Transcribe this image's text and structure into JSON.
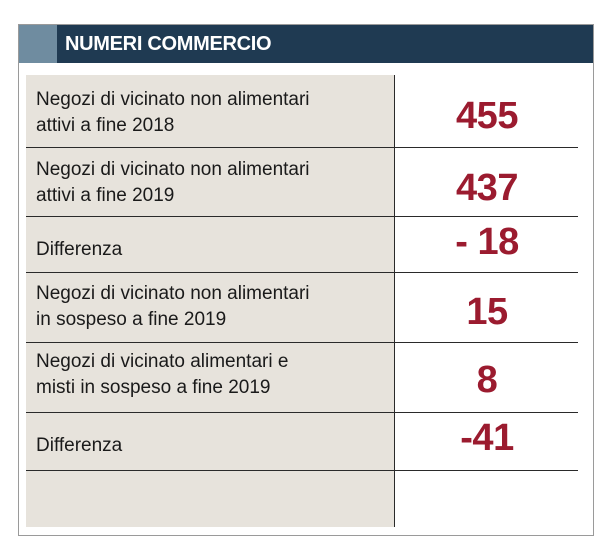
{
  "header": {
    "title": "NUMERI COMMERCIO"
  },
  "rows": [
    {
      "label_line1": "Negozi di vicinato non alimentari",
      "label_line2": "attivi a fine 2018",
      "value": "455"
    },
    {
      "label_line1": "Negozi di vicinato non alimentari",
      "label_line2": "attivi a fine 2019",
      "value": "437"
    },
    {
      "label_line1": "Differenza",
      "label_line2": "",
      "value": "- 18"
    },
    {
      "label_line1": "Negozi di vicinato non alimentari",
      "label_line2": "in sospeso a fine 2019",
      "value": "15"
    },
    {
      "label_line1": "Negozi di vicinato alimentari e",
      "label_line2": "misti in sospeso a fine 2019",
      "value": "8"
    },
    {
      "label_line1": "Differenza",
      "label_line2": "",
      "value": "-41"
    }
  ],
  "colors": {
    "header_bg": "#1f3a52",
    "header_accent": "#6f8ca0",
    "value_text": "#9b1b2f",
    "panel_bg": "#e7e3dc"
  }
}
